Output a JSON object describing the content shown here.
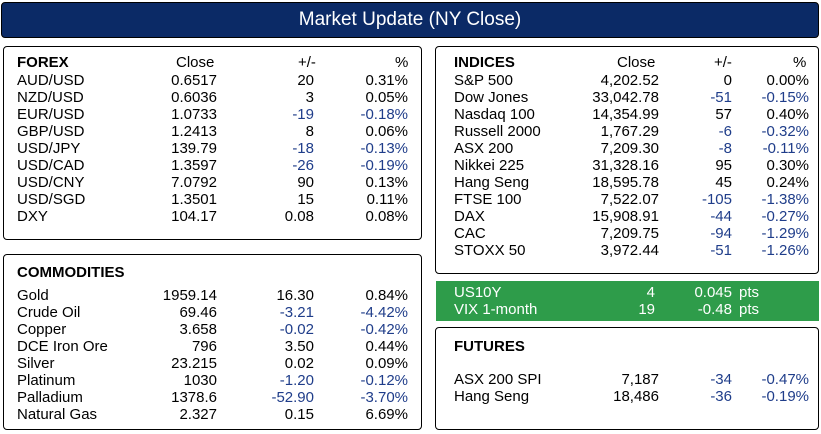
{
  "header": {
    "title": "Market Update (NY Close)"
  },
  "forex": {
    "title": "FOREX",
    "columns": [
      "Close",
      "+/-",
      "%"
    ],
    "rows": [
      {
        "name": "AUD/USD",
        "close": "0.6517",
        "chg": "20",
        "pct": "0.31%",
        "neg": false
      },
      {
        "name": "NZD/USD",
        "close": "0.6036",
        "chg": "3",
        "pct": "0.05%",
        "neg": false
      },
      {
        "name": "EUR/USD",
        "close": "1.0733",
        "chg": "-19",
        "pct": "-0.18%",
        "neg": true
      },
      {
        "name": "GBP/USD",
        "close": "1.2413",
        "chg": "8",
        "pct": "0.06%",
        "neg": false
      },
      {
        "name": "USD/JPY",
        "close": "139.79",
        "chg": "-18",
        "pct": "-0.13%",
        "neg": true
      },
      {
        "name": "USD/CAD",
        "close": "1.3597",
        "chg": "-26",
        "pct": "-0.19%",
        "neg": true
      },
      {
        "name": "USD/CNY",
        "close": "7.0792",
        "chg": "90",
        "pct": "0.13%",
        "neg": false
      },
      {
        "name": "USD/SGD",
        "close": "1.3501",
        "chg": "15",
        "pct": "0.11%",
        "neg": false
      },
      {
        "name": "DXY",
        "close": "104.17",
        "chg": "0.08",
        "pct": "0.08%",
        "neg": false
      }
    ]
  },
  "commodities": {
    "title": "COMMODITIES",
    "rows": [
      {
        "name": "Gold",
        "close": "1959.14",
        "chg": "16.30",
        "pct": "0.84%",
        "neg": false
      },
      {
        "name": "Crude Oil",
        "close": "69.46",
        "chg": "-3.21",
        "pct": "-4.42%",
        "neg": true
      },
      {
        "name": "Copper",
        "close": "3.658",
        "chg": "-0.02",
        "pct": "-0.42%",
        "neg": true
      },
      {
        "name": "DCE Iron Ore",
        "close": "796",
        "chg": "3.50",
        "pct": "0.44%",
        "neg": false
      },
      {
        "name": "Silver",
        "close": "23.215",
        "chg": "0.02",
        "pct": "0.09%",
        "neg": false
      },
      {
        "name": "Platinum",
        "close": "1030",
        "chg": "-1.20",
        "pct": "-0.12%",
        "neg": true
      },
      {
        "name": "Palladium",
        "close": "1378.6",
        "chg": "-52.90",
        "pct": "-3.70%",
        "neg": true
      },
      {
        "name": "Natural Gas",
        "close": "2.327",
        "chg": "0.15",
        "pct": "6.69%",
        "neg": false
      }
    ]
  },
  "indices": {
    "title": "INDICES",
    "columns": [
      "Close",
      "+/-",
      "%"
    ],
    "rows": [
      {
        "name": "S&P 500",
        "close": "4,202.52",
        "chg": "0",
        "pct": "0.00%",
        "neg": false
      },
      {
        "name": "Dow Jones",
        "close": "33,042.78",
        "chg": "-51",
        "pct": "-0.15%",
        "neg": true
      },
      {
        "name": "Nasdaq 100",
        "close": "14,354.99",
        "chg": "57",
        "pct": "0.40%",
        "neg": false
      },
      {
        "name": "Russell 2000",
        "close": "1,767.29",
        "chg": "-6",
        "pct": "-0.32%",
        "neg": true
      },
      {
        "name": "ASX 200",
        "close": "7,209.30",
        "chg": "-8",
        "pct": "-0.11%",
        "neg": true
      },
      {
        "name": "Nikkei 225",
        "close": "31,328.16",
        "chg": "95",
        "pct": "0.30%",
        "neg": false
      },
      {
        "name": "Hang Seng",
        "close": "18,595.78",
        "chg": "45",
        "pct": "0.24%",
        "neg": false
      },
      {
        "name": "FTSE 100",
        "close": "7,522.07",
        "chg": "-105",
        "pct": "-1.38%",
        "neg": true
      },
      {
        "name": "DAX",
        "close": "15,908.91",
        "chg": "-44",
        "pct": "-0.27%",
        "neg": true
      },
      {
        "name": "CAC",
        "close": "7,209.75",
        "chg": "-94",
        "pct": "-1.29%",
        "neg": true
      },
      {
        "name": "STOXX 50",
        "close": "3,972.44",
        "chg": "-51",
        "pct": "-1.26%",
        "neg": true
      }
    ]
  },
  "rates": {
    "rows": [
      {
        "name": "US10Y",
        "a": "4",
        "b": "0.045",
        "unit": "pts"
      },
      {
        "name": "VIX 1-month",
        "a": "19",
        "b": "-0.48",
        "unit": "pts"
      }
    ]
  },
  "futures": {
    "title": "FUTURES",
    "rows": [
      {
        "name": "ASX 200 SPI",
        "close": "7,187",
        "chg": "-34",
        "pct": "-0.47%",
        "neg": true
      },
      {
        "name": "Hang Seng",
        "close": "18,486",
        "chg": "-36",
        "pct": "-0.19%",
        "neg": true
      }
    ]
  },
  "colors": {
    "header": "#0b2a66",
    "negative": "#1f3d8a",
    "green_band": "#2e9c4a"
  }
}
